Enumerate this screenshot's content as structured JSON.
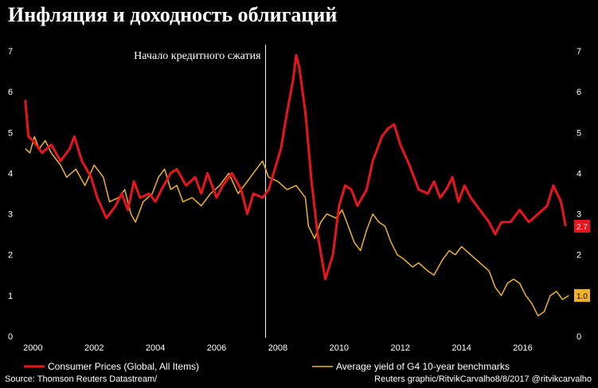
{
  "chart_data": {
    "type": "line",
    "title": "Инфляция и доходность облигаций",
    "annotation": {
      "label": "Начало кредитного сжатия",
      "x": 2007.6
    },
    "xlim": [
      1999.6,
      2017.6
    ],
    "ylim": [
      0,
      7
    ],
    "x_ticks": [
      2000,
      2002,
      2004,
      2006,
      2008,
      2010,
      2012,
      2014,
      2016
    ],
    "x_tick_labels": [
      "2000",
      "2002",
      "2004",
      "2006",
      "2008",
      "2010",
      "2012",
      "2014",
      "2016"
    ],
    "y_ticks": [
      0,
      1,
      2,
      3,
      4,
      5,
      6,
      7
    ],
    "y_tick_labels": [
      "0",
      "1",
      "2",
      "3",
      "4",
      "5",
      "6",
      "7"
    ],
    "grid": false,
    "legend_position": "bottom",
    "series": [
      {
        "name": "Consumer Prices (Global, All Items)",
        "color": "#e8151c",
        "last_value_label": "2.7",
        "points": [
          [
            1999.75,
            5.8
          ],
          [
            1999.85,
            4.9
          ],
          [
            2000.0,
            4.8
          ],
          [
            2000.3,
            4.5
          ],
          [
            2000.6,
            4.7
          ],
          [
            2000.9,
            4.3
          ],
          [
            2001.2,
            4.6
          ],
          [
            2001.35,
            4.9
          ],
          [
            2001.6,
            4.3
          ],
          [
            2001.9,
            3.9
          ],
          [
            2002.1,
            3.4
          ],
          [
            2002.4,
            2.9
          ],
          [
            2002.7,
            3.2
          ],
          [
            2002.9,
            3.5
          ],
          [
            2003.1,
            3.1
          ],
          [
            2003.3,
            3.8
          ],
          [
            2003.5,
            3.4
          ],
          [
            2003.8,
            3.5
          ],
          [
            2004.0,
            3.3
          ],
          [
            2004.2,
            3.6
          ],
          [
            2004.5,
            4.0
          ],
          [
            2004.7,
            4.1
          ],
          [
            2005.0,
            3.7
          ],
          [
            2005.3,
            3.9
          ],
          [
            2005.5,
            3.5
          ],
          [
            2005.7,
            4.0
          ],
          [
            2006.0,
            3.4
          ],
          [
            2006.2,
            3.7
          ],
          [
            2006.5,
            4.0
          ],
          [
            2006.8,
            3.6
          ],
          [
            2007.0,
            3.0
          ],
          [
            2007.2,
            3.5
          ],
          [
            2007.5,
            3.4
          ],
          [
            2007.7,
            3.6
          ],
          [
            2007.9,
            4.1
          ],
          [
            2008.1,
            4.6
          ],
          [
            2008.3,
            5.5
          ],
          [
            2008.5,
            6.3
          ],
          [
            2008.6,
            6.9
          ],
          [
            2008.7,
            6.6
          ],
          [
            2008.9,
            5.5
          ],
          [
            2009.1,
            3.8
          ],
          [
            2009.3,
            2.5
          ],
          [
            2009.55,
            1.4
          ],
          [
            2009.8,
            2.0
          ],
          [
            2010.0,
            3.2
          ],
          [
            2010.2,
            3.7
          ],
          [
            2010.4,
            3.6
          ],
          [
            2010.6,
            3.2
          ],
          [
            2010.9,
            3.6
          ],
          [
            2011.1,
            4.3
          ],
          [
            2011.4,
            4.9
          ],
          [
            2011.6,
            5.1
          ],
          [
            2011.8,
            5.2
          ],
          [
            2012.0,
            4.7
          ],
          [
            2012.3,
            4.2
          ],
          [
            2012.6,
            3.6
          ],
          [
            2012.9,
            3.5
          ],
          [
            2013.1,
            3.8
          ],
          [
            2013.3,
            3.4
          ],
          [
            2013.5,
            3.6
          ],
          [
            2013.7,
            3.9
          ],
          [
            2013.9,
            3.3
          ],
          [
            2014.1,
            3.7
          ],
          [
            2014.3,
            3.4
          ],
          [
            2014.6,
            3.1
          ],
          [
            2014.9,
            2.8
          ],
          [
            2015.1,
            2.5
          ],
          [
            2015.3,
            2.8
          ],
          [
            2015.6,
            2.8
          ],
          [
            2015.9,
            3.1
          ],
          [
            2016.2,
            2.8
          ],
          [
            2016.5,
            3.0
          ],
          [
            2016.8,
            3.2
          ],
          [
            2017.0,
            3.7
          ],
          [
            2017.25,
            3.3
          ],
          [
            2017.4,
            2.7
          ]
        ]
      },
      {
        "name": "Average yield of G4 10-year benchmarks",
        "color": "#f0b323",
        "last_value_label": "1.0",
        "points": [
          [
            1999.75,
            4.6
          ],
          [
            1999.9,
            4.5
          ],
          [
            2000.05,
            4.9
          ],
          [
            2000.2,
            4.6
          ],
          [
            2000.4,
            4.8
          ],
          [
            2000.6,
            4.5
          ],
          [
            2000.9,
            4.2
          ],
          [
            2001.1,
            3.9
          ],
          [
            2001.4,
            4.1
          ],
          [
            2001.7,
            3.7
          ],
          [
            2002.0,
            4.2
          ],
          [
            2002.3,
            3.9
          ],
          [
            2002.5,
            3.3
          ],
          [
            2002.8,
            3.4
          ],
          [
            2003.0,
            3.6
          ],
          [
            2003.2,
            3.0
          ],
          [
            2003.35,
            2.8
          ],
          [
            2003.6,
            3.3
          ],
          [
            2003.9,
            3.5
          ],
          [
            2004.1,
            3.9
          ],
          [
            2004.3,
            4.1
          ],
          [
            2004.5,
            3.6
          ],
          [
            2004.7,
            3.7
          ],
          [
            2004.9,
            3.3
          ],
          [
            2005.2,
            3.4
          ],
          [
            2005.5,
            3.2
          ],
          [
            2005.8,
            3.5
          ],
          [
            2006.1,
            3.7
          ],
          [
            2006.4,
            4.0
          ],
          [
            2006.7,
            3.5
          ],
          [
            2007.0,
            3.8
          ],
          [
            2007.3,
            4.1
          ],
          [
            2007.5,
            4.3
          ],
          [
            2007.7,
            3.9
          ],
          [
            2008.0,
            3.8
          ],
          [
            2008.3,
            3.6
          ],
          [
            2008.6,
            3.7
          ],
          [
            2008.9,
            3.4
          ],
          [
            2009.0,
            2.7
          ],
          [
            2009.2,
            2.4
          ],
          [
            2009.4,
            2.8
          ],
          [
            2009.6,
            3.0
          ],
          [
            2009.9,
            2.9
          ],
          [
            2010.1,
            3.1
          ],
          [
            2010.3,
            2.7
          ],
          [
            2010.5,
            2.3
          ],
          [
            2010.7,
            2.1
          ],
          [
            2010.9,
            2.6
          ],
          [
            2011.1,
            3.0
          ],
          [
            2011.3,
            2.8
          ],
          [
            2011.5,
            2.7
          ],
          [
            2011.7,
            2.3
          ],
          [
            2011.9,
            2.0
          ],
          [
            2012.1,
            1.9
          ],
          [
            2012.4,
            1.7
          ],
          [
            2012.6,
            1.8
          ],
          [
            2012.9,
            1.6
          ],
          [
            2013.1,
            1.5
          ],
          [
            2013.4,
            1.9
          ],
          [
            2013.6,
            2.1
          ],
          [
            2013.8,
            2.0
          ],
          [
            2014.0,
            2.2
          ],
          [
            2014.3,
            2.0
          ],
          [
            2014.6,
            1.8
          ],
          [
            2014.9,
            1.6
          ],
          [
            2015.1,
            1.2
          ],
          [
            2015.3,
            1.0
          ],
          [
            2015.5,
            1.3
          ],
          [
            2015.7,
            1.4
          ],
          [
            2015.9,
            1.3
          ],
          [
            2016.1,
            1.0
          ],
          [
            2016.3,
            0.8
          ],
          [
            2016.5,
            0.5
          ],
          [
            2016.7,
            0.6
          ],
          [
            2016.9,
            1.0
          ],
          [
            2017.1,
            1.1
          ],
          [
            2017.3,
            0.9
          ],
          [
            2017.5,
            1.0
          ]
        ]
      }
    ]
  },
  "footer": {
    "source": "Source: Thomson Reuters Datastream/",
    "credit": "Reuters graphic/RitvikCarvalho8/8/2017  @ritvikcarvalho"
  }
}
